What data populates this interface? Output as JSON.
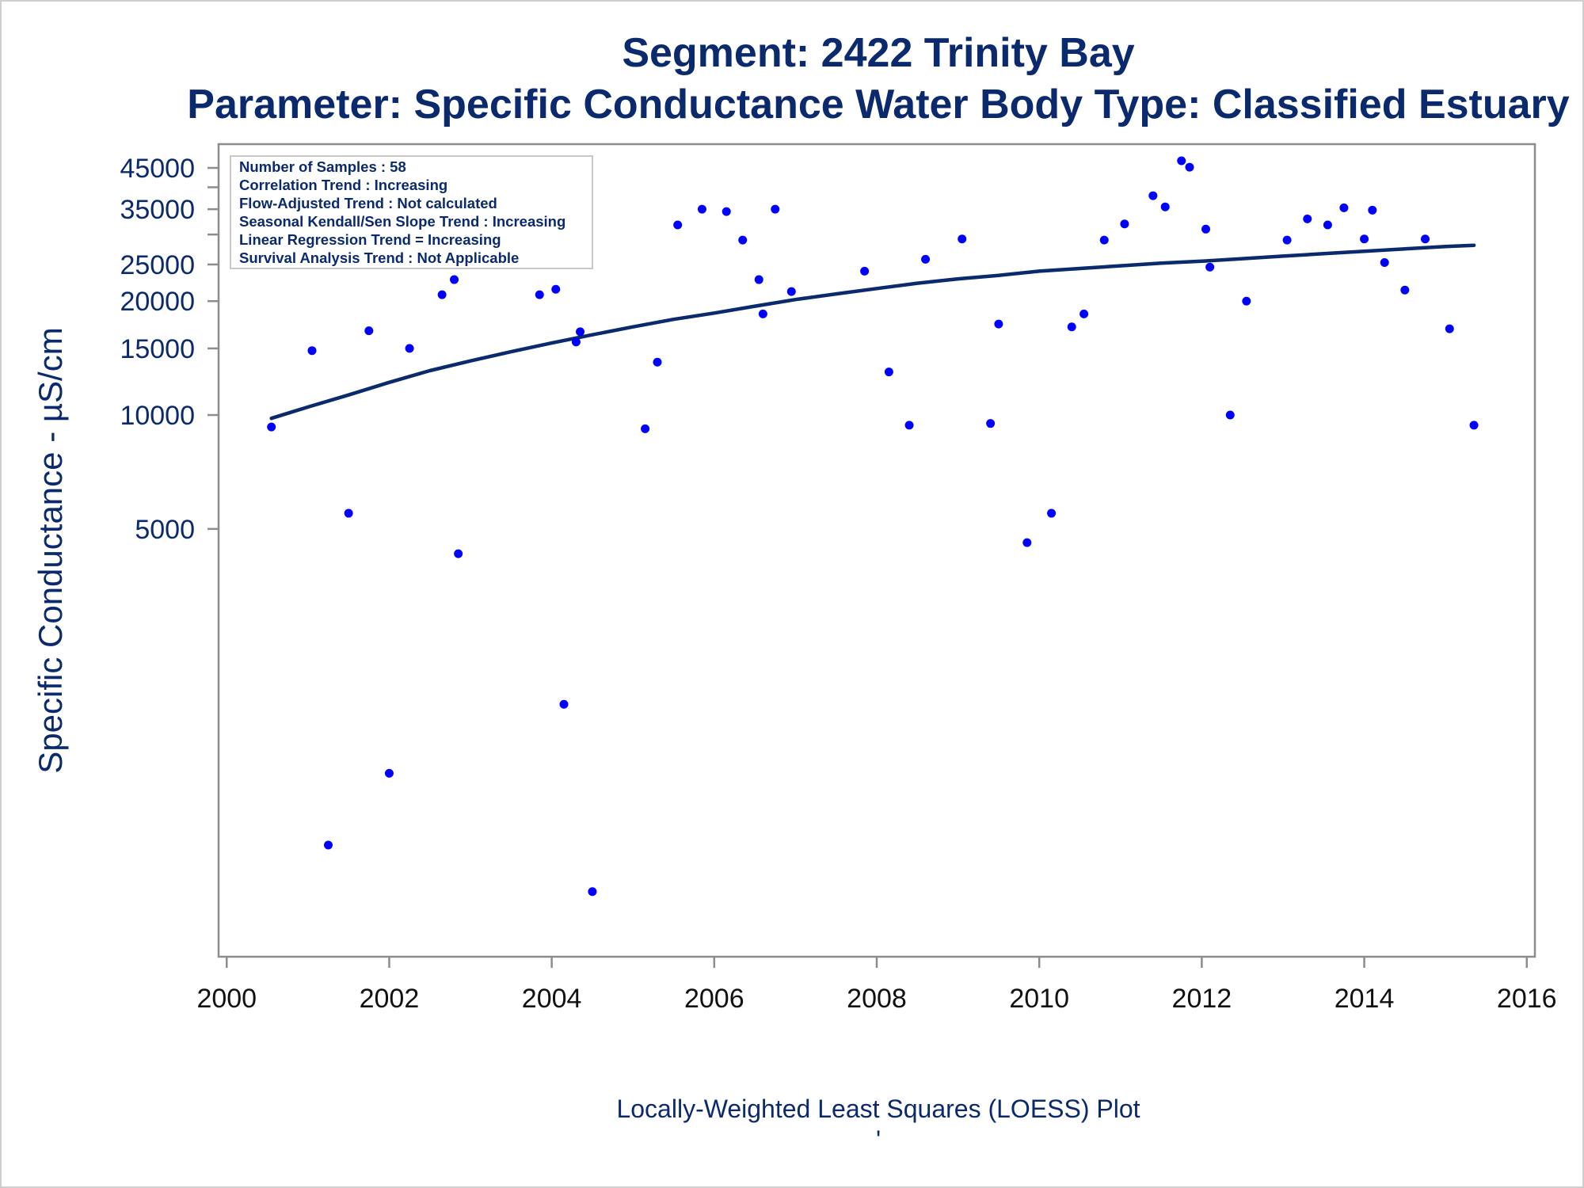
{
  "chart_data": {
    "type": "scatter",
    "title": "Segment: 2422  Trinity Bay",
    "subtitle": "Parameter: Specific Conductance   Water Body Type: Classified Estuary",
    "ylabel": "Specific Conductance -  µS/cm",
    "footnote": "Locally-Weighted Least Squares (LOESS) Plot",
    "footnote_mark": "'",
    "x_scale": "linear",
    "y_scale": "log",
    "xlim": [
      1999.9,
      2016.1
    ],
    "ylim": [
      370,
      52000
    ],
    "x_ticks": [
      2000,
      2002,
      2004,
      2006,
      2008,
      2010,
      2012,
      2014,
      2016
    ],
    "x_tick_labels": [
      "2000",
      "2002",
      "2004",
      "2006",
      "2008",
      "2010",
      "2012",
      "2014",
      "2016"
    ],
    "y_ticks": [
      5000,
      10000,
      15000,
      20000,
      25000,
      35000,
      45000
    ],
    "y_tick_labels": [
      "5000",
      "10000",
      "15000",
      "20000",
      "25000",
      "35000",
      "45000"
    ],
    "y_minor_ticks": [
      30000,
      40000
    ],
    "grid": false,
    "legend_position": "top-left",
    "stats_box": [
      "Number of Samples : 58",
      "Correlation Trend : Increasing",
      "Flow-Adjusted Trend : Not calculated",
      "Seasonal Kendall/Sen Slope Trend : Increasing",
      "Linear Regression Trend = Increasing",
      "Survival Analysis Trend : Not Applicable"
    ],
    "colors": {
      "points": "#0000ff",
      "loess": "#0b2a6e",
      "text": "#0b2a6e",
      "axis": "#8c8c8c"
    },
    "series": [
      {
        "type": "scatter",
        "points": [
          [
            2000.55,
            9300
          ],
          [
            2001.05,
            14800
          ],
          [
            2001.25,
            730
          ],
          [
            2001.5,
            5500
          ],
          [
            2001.75,
            16700
          ],
          [
            2002.0,
            1130
          ],
          [
            2002.25,
            15000
          ],
          [
            2002.65,
            20800
          ],
          [
            2002.8,
            22800
          ],
          [
            2002.85,
            4300
          ],
          [
            2003.85,
            20800
          ],
          [
            2004.05,
            21500
          ],
          [
            2004.15,
            1720
          ],
          [
            2004.3,
            15600
          ],
          [
            2004.35,
            16600
          ],
          [
            2004.5,
            550
          ],
          [
            2005.15,
            9200
          ],
          [
            2005.3,
            13800
          ],
          [
            2005.55,
            31800
          ],
          [
            2005.85,
            35000
          ],
          [
            2006.15,
            34500
          ],
          [
            2006.35,
            29000
          ],
          [
            2006.55,
            22800
          ],
          [
            2006.6,
            18500
          ],
          [
            2006.75,
            35000
          ],
          [
            2006.95,
            21200
          ],
          [
            2007.85,
            24000
          ],
          [
            2008.15,
            13000
          ],
          [
            2008.4,
            9400
          ],
          [
            2008.6,
            25800
          ],
          [
            2009.05,
            29200
          ],
          [
            2009.4,
            9500
          ],
          [
            2009.5,
            17400
          ],
          [
            2009.85,
            4600
          ],
          [
            2010.15,
            5500
          ],
          [
            2010.4,
            17100
          ],
          [
            2010.55,
            18500
          ],
          [
            2010.8,
            29000
          ],
          [
            2011.05,
            32000
          ],
          [
            2011.4,
            38000
          ],
          [
            2011.55,
            35500
          ],
          [
            2011.75,
            47000
          ],
          [
            2011.85,
            45200
          ],
          [
            2012.05,
            31000
          ],
          [
            2012.1,
            24600
          ],
          [
            2012.35,
            10000
          ],
          [
            2012.55,
            20000
          ],
          [
            2013.05,
            29000
          ],
          [
            2013.3,
            33000
          ],
          [
            2013.55,
            31800
          ],
          [
            2013.75,
            35300
          ],
          [
            2014.0,
            29200
          ],
          [
            2014.1,
            34800
          ],
          [
            2014.25,
            25300
          ],
          [
            2014.5,
            21400
          ],
          [
            2014.75,
            29200
          ],
          [
            2015.05,
            16900
          ],
          [
            2015.35,
            9400
          ]
        ]
      },
      {
        "type": "line",
        "name": "LOESS",
        "points": [
          [
            2000.55,
            9800
          ],
          [
            2001.0,
            10500
          ],
          [
            2001.5,
            11300
          ],
          [
            2002.0,
            12200
          ],
          [
            2002.5,
            13100
          ],
          [
            2003.0,
            13900
          ],
          [
            2003.5,
            14700
          ],
          [
            2004.0,
            15500
          ],
          [
            2004.5,
            16300
          ],
          [
            2005.0,
            17100
          ],
          [
            2005.5,
            17900
          ],
          [
            2006.0,
            18600
          ],
          [
            2006.5,
            19400
          ],
          [
            2007.0,
            20200
          ],
          [
            2007.5,
            20900
          ],
          [
            2008.0,
            21600
          ],
          [
            2008.5,
            22300
          ],
          [
            2009.0,
            22900
          ],
          [
            2009.5,
            23400
          ],
          [
            2010.0,
            24000
          ],
          [
            2010.5,
            24400
          ],
          [
            2011.0,
            24800
          ],
          [
            2011.5,
            25200
          ],
          [
            2012.0,
            25500
          ],
          [
            2012.5,
            25900
          ],
          [
            2013.0,
            26300
          ],
          [
            2013.5,
            26700
          ],
          [
            2014.0,
            27100
          ],
          [
            2014.5,
            27500
          ],
          [
            2015.0,
            27900
          ],
          [
            2015.35,
            28100
          ]
        ]
      }
    ]
  }
}
